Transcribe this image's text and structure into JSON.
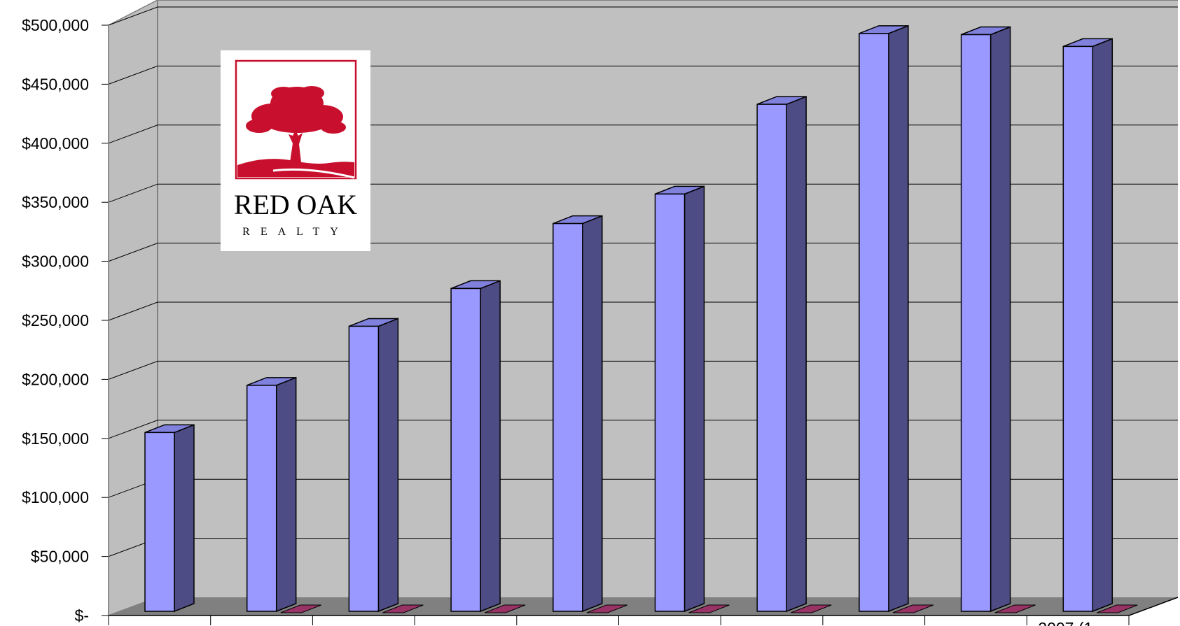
{
  "chart_data": {
    "type": "bar",
    "categories": [
      "",
      "",
      "",
      "",
      "",
      "",
      "",
      "",
      "",
      "2007 (1"
    ],
    "series": [
      {
        "values": [
          155000,
          195000,
          245000,
          277000,
          332000,
          357000,
          433000,
          493000,
          492000,
          482000
        ]
      },
      {
        "values": [
          0,
          0,
          0,
          0,
          0,
          0,
          0,
          0,
          0,
          0
        ]
      }
    ],
    "y_ticks": [
      "$-",
      "$50,000",
      "$100,000",
      "$150,000",
      "$200,000",
      "$250,000",
      "$300,000",
      "$350,000",
      "$400,000",
      "$450,000",
      "$500,000"
    ],
    "ylim": [
      0,
      500000
    ],
    "grid": true,
    "legend": "none",
    "colors": {
      "bar_front": "#9999FF",
      "bar_side": "#4E4C84",
      "bar_top": "#8080DD",
      "flat_series": "#993366",
      "wall": "#C0C0C0",
      "side_wall": "#BEBEBE",
      "floor": "#808080",
      "gridline": "#000000"
    }
  },
  "logo": {
    "name": "RED OAK",
    "subtitle": "REALTY",
    "color": "#C8102E"
  }
}
